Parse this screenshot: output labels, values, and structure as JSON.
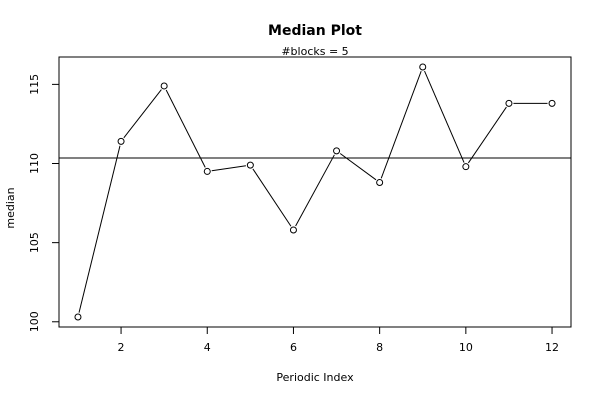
{
  "chart_data": {
    "type": "line",
    "title": "Median Plot",
    "subtitle": "#blocks =  5",
    "xlabel": "Periodic Index",
    "ylabel": "median",
    "x": [
      1,
      2,
      3,
      4,
      5,
      6,
      7,
      8,
      9,
      10,
      11,
      12
    ],
    "series": [
      {
        "values": [
          100.3,
          111.4,
          114.9,
          109.5,
          109.9,
          105.8,
          110.8,
          108.8,
          116.1,
          109.8,
          113.8,
          113.8
        ]
      }
    ],
    "reference_line": {
      "orientation": "horizontal",
      "value": 110.35
    },
    "xlim": [
      0.56,
      12.44
    ],
    "ylim": [
      99.67,
      116.73
    ],
    "xticks": [
      2,
      4,
      6,
      8,
      10,
      12
    ],
    "yticks": [
      100,
      105,
      110,
      115
    ],
    "grid": false,
    "legend": "none",
    "markers": "open-circle",
    "colors": {
      "line": "#000000",
      "background": "#ffffff"
    }
  }
}
